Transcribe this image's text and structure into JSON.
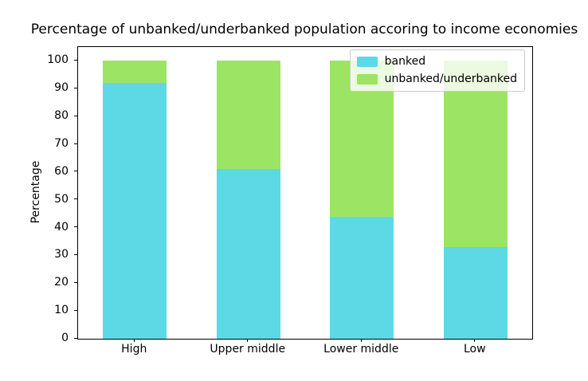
{
  "chart_data": {
    "type": "bar",
    "stacked": true,
    "title": "Percentage of unbanked/underbanked population accoring to income economies",
    "ylabel": "Percentage",
    "xlabel": "",
    "categories": [
      "High",
      "Upper middle",
      "Lower middle",
      "Low"
    ],
    "series": [
      {
        "name": "banked",
        "color": "#5dd9e6",
        "values": [
          92,
          61,
          44,
          33
        ]
      },
      {
        "name": "unbanked/underbanked",
        "color": "#9ce464",
        "values": [
          8,
          39,
          56,
          67
        ]
      }
    ],
    "ylim": [
      0,
      105
    ],
    "y_ticks": [
      0,
      10,
      20,
      30,
      40,
      50,
      60,
      70,
      80,
      90,
      100
    ],
    "legend": {
      "position": "upper right"
    },
    "grid": false,
    "colors": {
      "axis": "#000000",
      "legend_border": "#cccccc",
      "background": "#ffffff"
    }
  }
}
